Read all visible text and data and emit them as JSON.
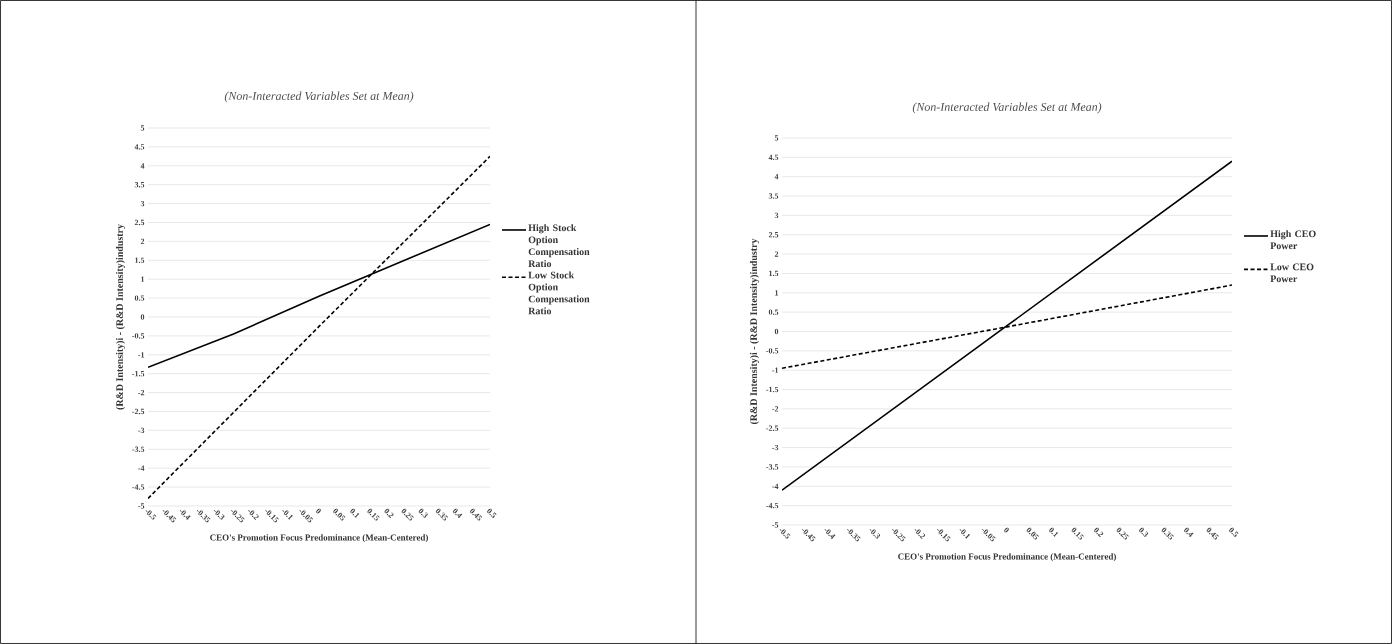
{
  "chart_data": [
    {
      "type": "line",
      "title": "(Non-Interacted Variables Set at Mean)",
      "xlabel": "CEO's Promotion  Focus Predominance  (Mean-Centered)",
      "ylabel": "(R&D Intensity)i - (R&D Intensity)industry",
      "series": [
        {
          "name": "High Stock Option Compensation Ratio",
          "color": "#000000",
          "line_style": "solid",
          "x": [
            -0.5,
            -0.25,
            0,
            0.25,
            0.5
          ],
          "values": [
            -1.33,
            -0.45,
            0.55,
            1.5,
            2.45
          ]
        },
        {
          "name": "Low Stock Option Compensation Ratio",
          "color": "#000000",
          "line_style": "dashed",
          "x": [
            -0.5,
            0,
            0.5
          ],
          "values": [
            -4.8,
            -0.25,
            4.25
          ]
        }
      ],
      "xlim": [
        -0.5,
        0.5
      ],
      "xticks": [
        -0.5,
        -0.45,
        -0.4,
        -0.35,
        -0.3,
        -0.25,
        -0.2,
        -0.15,
        -0.1,
        -0.05,
        0,
        0.05,
        0.1,
        0.15,
        0.2,
        0.25,
        0.3,
        0.35,
        0.4,
        0.45,
        0.5
      ],
      "ylim": [
        -5,
        5
      ],
      "yticks": [
        -5,
        -4.5,
        -4,
        -3.5,
        -3,
        -2.5,
        -2,
        -1.5,
        -1,
        -0.5,
        0,
        0.5,
        1,
        1.5,
        2,
        2.5,
        3,
        3.5,
        4,
        4.5,
        5
      ],
      "grid": "y",
      "legend": "right"
    },
    {
      "type": "line",
      "title": "(Non-Interacted Variables Set at Mean)",
      "xlabel": "CEO's Promotion  Focus Predominance  (Mean-Centered)",
      "ylabel": "(R&D Intensity)i - (R&D Intensity)industry",
      "series": [
        {
          "name": "High CEO Power",
          "color": "#000000",
          "line_style": "solid",
          "x": [
            -0.5,
            0,
            0.5
          ],
          "values": [
            -4.1,
            0.15,
            4.4
          ]
        },
        {
          "name": "Low CEO Power",
          "color": "#000000",
          "line_style": "dashed",
          "x": [
            -0.5,
            0,
            0.5
          ],
          "values": [
            -0.95,
            0.12,
            1.2
          ]
        }
      ],
      "xlim": [
        -0.5,
        0.5
      ],
      "xticks": [
        -0.5,
        -0.45,
        -0.4,
        -0.35,
        -0.3,
        -0.25,
        -0.2,
        -0.15,
        -0.1,
        -0.05,
        0,
        0.05,
        0.1,
        0.15,
        0.2,
        0.25,
        0.3,
        0.35,
        0.4,
        0.45,
        0.5
      ],
      "ylim": [
        -5,
        5
      ],
      "yticks": [
        -5,
        -4.5,
        -4,
        -3.5,
        -3,
        -2.5,
        -2,
        -1.5,
        -1,
        -0.5,
        0,
        0.5,
        1,
        1.5,
        2,
        2.5,
        3,
        3.5,
        4,
        4.5,
        5
      ],
      "grid": "y",
      "legend": "right"
    }
  ]
}
